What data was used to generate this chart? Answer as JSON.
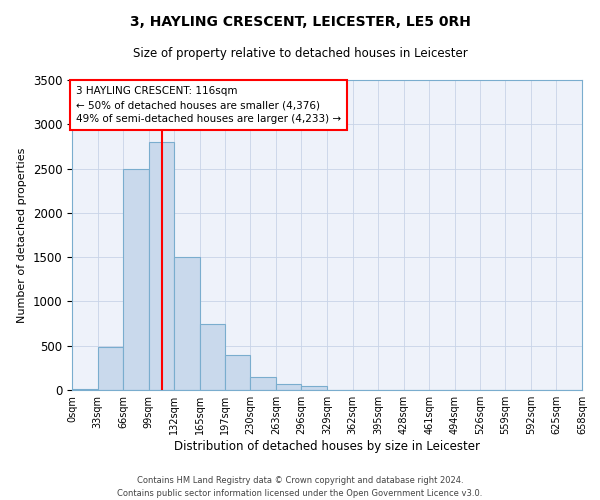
{
  "title": "3, HAYLING CRESCENT, LEICESTER, LE5 0RH",
  "subtitle": "Size of property relative to detached houses in Leicester",
  "xlabel": "Distribution of detached houses by size in Leicester",
  "ylabel": "Number of detached properties",
  "bar_color": "#c9d9ec",
  "bar_edge_color": "#7aadce",
  "bar_left_edges": [
    0,
    33,
    66,
    99,
    132,
    165,
    197,
    230,
    263,
    296,
    329,
    362,
    395,
    428,
    461,
    494,
    526,
    559,
    592,
    625
  ],
  "bar_heights": [
    10,
    480,
    2500,
    2800,
    1500,
    750,
    400,
    150,
    70,
    50,
    0,
    0,
    0,
    0,
    0,
    0,
    0,
    0,
    0,
    0
  ],
  "bin_width": 33,
  "property_line_x": 116,
  "property_line_color": "red",
  "ylim": [
    0,
    3500
  ],
  "yticks": [
    0,
    500,
    1000,
    1500,
    2000,
    2500,
    3000,
    3500
  ],
  "xtick_labels": [
    "0sqm",
    "33sqm",
    "66sqm",
    "99sqm",
    "132sqm",
    "165sqm",
    "197sqm",
    "230sqm",
    "263sqm",
    "296sqm",
    "329sqm",
    "362sqm",
    "395sqm",
    "428sqm",
    "461sqm",
    "494sqm",
    "526sqm",
    "559sqm",
    "592sqm",
    "625sqm",
    "658sqm"
  ],
  "xtick_positions": [
    0,
    33,
    66,
    99,
    132,
    165,
    197,
    230,
    263,
    296,
    329,
    362,
    395,
    428,
    461,
    494,
    526,
    559,
    592,
    625,
    658
  ],
  "annotation_box_text": "3 HAYLING CRESCENT: 116sqm\n← 50% of detached houses are smaller (4,376)\n49% of semi-detached houses are larger (4,233) →",
  "footer_line1": "Contains HM Land Registry data © Crown copyright and database right 2024.",
  "footer_line2": "Contains public sector information licensed under the Open Government Licence v3.0.",
  "background_color": "#eef2fa",
  "grid_color": "#c8d4e8"
}
